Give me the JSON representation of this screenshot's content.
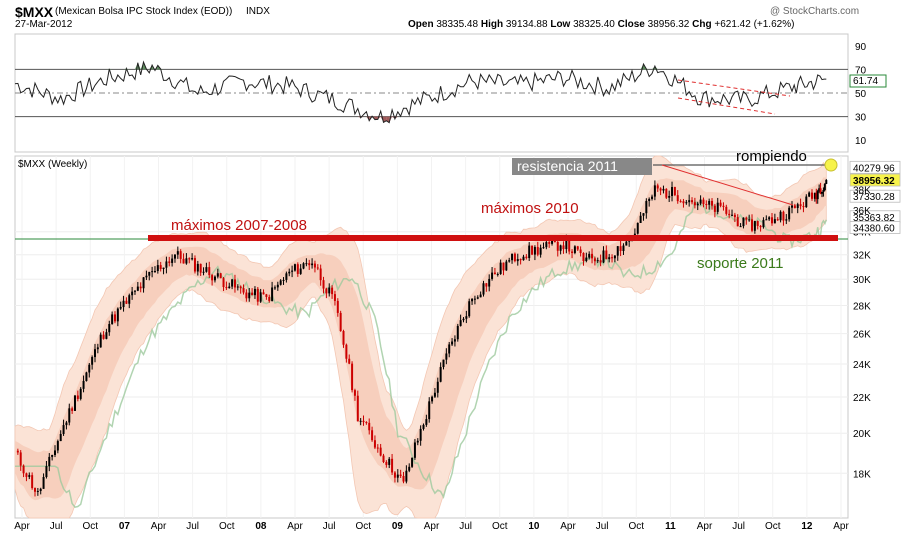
{
  "header": {
    "symbol": "$MXX",
    "name": "(Mexican Bolsa IPC Stock Index (EOD))",
    "exchange": "INDX",
    "date": "27-Mar-2012",
    "watermark": "@ StockCharts.com",
    "open_label": "Open",
    "open_value": "38335.48",
    "high_label": "High",
    "high_value": "39134.88",
    "low_label": "Low",
    "low_value": "38325.40",
    "close_label": "Close",
    "close_value": "38956.32",
    "chg_label": "Chg",
    "chg_value": "+621.42 (+1.62%)"
  },
  "chart_data": [
    {
      "type": "line",
      "panel": "indicator",
      "y_ticks": [
        "90",
        "70",
        "50",
        "30",
        "10"
      ],
      "ylim": [
        0,
        100
      ],
      "levels": [
        70,
        50,
        30
      ],
      "last_value_label": "61.74",
      "last_value": 61.74,
      "x": [
        "2006-04",
        "2006-08",
        "2006-12",
        "2007-04",
        "2007-08",
        "2007-12",
        "2008-04",
        "2008-08",
        "2008-12",
        "2009-04",
        "2009-08",
        "2009-12",
        "2010-04",
        "2010-08",
        "2010-12",
        "2011-04",
        "2011-08",
        "2011-12",
        "2012-03"
      ],
      "values": [
        58,
        45,
        62,
        72,
        50,
        60,
        56,
        44,
        30,
        45,
        60,
        57,
        63,
        54,
        73,
        46,
        44,
        55,
        61.74
      ]
    },
    {
      "type": "candlestick",
      "panel": "price",
      "title": "$MXX (Weekly)",
      "y_ticks": [
        "34K",
        "32K",
        "30K",
        "28K",
        "26K",
        "24K",
        "22K",
        "20K",
        "18K"
      ],
      "ylim": [
        16000,
        41500
      ],
      "x_ticks": [
        "Apr",
        "Jul",
        "Oct",
        "07",
        "Apr",
        "Jul",
        "Oct",
        "08",
        "Apr",
        "Jul",
        "Oct",
        "09",
        "Apr",
        "Jul",
        "Oct",
        "10",
        "Apr",
        "Jul",
        "Oct",
        "11",
        "Apr",
        "Jul",
        "Oct",
        "12",
        "Apr"
      ],
      "right_labels": [
        "40279.96",
        "38956.32",
        "37330.28",
        "35363.82",
        "34380.60"
      ],
      "right_ticks": [
        "38K",
        "36K"
      ],
      "x": [
        "2006-04",
        "2006-06",
        "2006-08",
        "2006-10",
        "2006-12",
        "2007-02",
        "2007-04",
        "2007-06",
        "2007-08",
        "2007-10",
        "2007-12",
        "2008-02",
        "2008-04",
        "2008-06",
        "2008-08",
        "2008-10",
        "2008-12",
        "2009-02",
        "2009-04",
        "2009-06",
        "2009-08",
        "2009-10",
        "2009-12",
        "2010-02",
        "2010-04",
        "2010-06",
        "2010-08",
        "2010-10",
        "2010-12",
        "2011-02",
        "2011-04",
        "2011-06",
        "2011-08",
        "2011-10",
        "2011-12",
        "2012-02",
        "2012-03"
      ],
      "close": [
        19000,
        17000,
        20000,
        23000,
        26500,
        28500,
        30500,
        32000,
        31000,
        30000,
        29000,
        28500,
        30500,
        31500,
        28000,
        21000,
        19000,
        17500,
        21000,
        25000,
        28500,
        30500,
        32000,
        32500,
        33000,
        31500,
        32000,
        33500,
        38000,
        37500,
        36500,
        36000,
        34500,
        35000,
        36000,
        37500,
        38956
      ]
    }
  ],
  "annotations": {
    "resistance_label": "resistencia 2011",
    "breakout_label": "rompiendo",
    "highs_2007_label": "máximos 2007-2008",
    "highs_2010_label": "máximos 2010",
    "support_label": "soporte 2011"
  }
}
